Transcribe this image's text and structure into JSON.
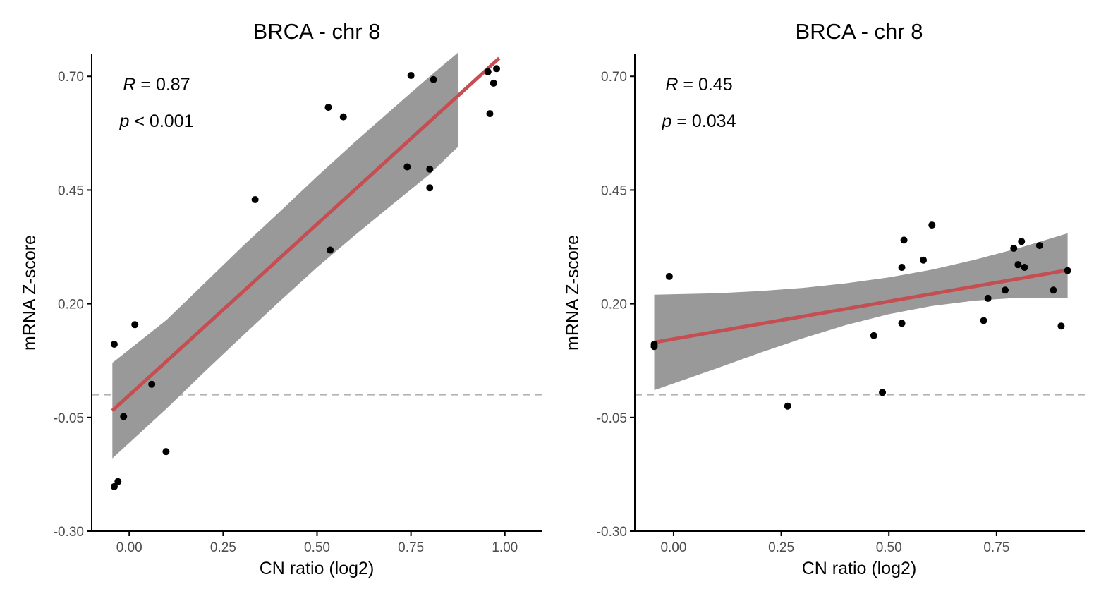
{
  "chart_data": [
    {
      "type": "scatter",
      "title": "BRCA - chr 8",
      "xlabel": "CN ratio (log2)",
      "ylabel": "mRNA Z-score",
      "xlim": [
        -0.1,
        1.1
      ],
      "ylim": [
        -0.3,
        0.75
      ],
      "xticks": [
        0.0,
        0.25,
        0.5,
        0.75,
        1.0
      ],
      "xtick_labels": [
        "0.00",
        "0.25",
        "0.50",
        "0.75",
        "1.00"
      ],
      "yticks": [
        -0.3,
        -0.05,
        0.2,
        0.45,
        0.7
      ],
      "ytick_labels": [
        "-0.30",
        "-0.05",
        "0.20",
        "0.45",
        "0.70"
      ],
      "reference_line_y": 0.0,
      "stats": {
        "r_label": "R",
        "r_text": " = 0.87",
        "p_label": "p",
        "p_text": " < 0.001"
      },
      "points": [
        {
          "x": -0.04,
          "y": 0.111
        },
        {
          "x": 0.015,
          "y": 0.154
        },
        {
          "x": 0.06,
          "y": 0.023
        },
        {
          "x": -0.015,
          "y": -0.048
        },
        {
          "x": 0.098,
          "y": -0.125
        },
        {
          "x": -0.04,
          "y": -0.202
        },
        {
          "x": -0.03,
          "y": -0.191
        },
        {
          "x": 0.335,
          "y": 0.429
        },
        {
          "x": 0.535,
          "y": 0.318
        },
        {
          "x": 0.53,
          "y": 0.632
        },
        {
          "x": 0.57,
          "y": 0.611
        },
        {
          "x": 0.74,
          "y": 0.501
        },
        {
          "x": 0.75,
          "y": 0.702
        },
        {
          "x": 0.8,
          "y": 0.496
        },
        {
          "x": 0.8,
          "y": 0.455
        },
        {
          "x": 0.81,
          "y": 0.693
        },
        {
          "x": 0.955,
          "y": 0.71
        },
        {
          "x": 0.96,
          "y": 0.618
        },
        {
          "x": 0.97,
          "y": 0.685
        },
        {
          "x": 0.978,
          "y": 0.717
        }
      ],
      "fit": {
        "x0": -0.045,
        "y0": -0.035,
        "x1": 0.985,
        "y1": 0.74
      },
      "ribbon_upper": [
        {
          "x": -0.045,
          "y": 0.07
        },
        {
          "x": 0.1,
          "y": 0.165
        },
        {
          "x": 0.2,
          "y": 0.245
        },
        {
          "x": 0.3,
          "y": 0.325
        },
        {
          "x": 0.4,
          "y": 0.402
        },
        {
          "x": 0.5,
          "y": 0.48
        },
        {
          "x": 0.6,
          "y": 0.555
        },
        {
          "x": 0.7,
          "y": 0.628
        },
        {
          "x": 0.8,
          "y": 0.7
        },
        {
          "x": 0.875,
          "y": 0.752
        }
      ],
      "ribbon_lower": [
        {
          "x": -0.045,
          "y": -0.14
        },
        {
          "x": 0.1,
          "y": -0.03
        },
        {
          "x": 0.2,
          "y": 0.05
        },
        {
          "x": 0.3,
          "y": 0.128
        },
        {
          "x": 0.4,
          "y": 0.205
        },
        {
          "x": 0.5,
          "y": 0.28
        },
        {
          "x": 0.6,
          "y": 0.35
        },
        {
          "x": 0.7,
          "y": 0.418
        },
        {
          "x": 0.8,
          "y": 0.485
        },
        {
          "x": 0.875,
          "y": 0.545
        }
      ],
      "colors": {
        "points": "#000000",
        "fit": "#c44e52",
        "ribbon": "#999999",
        "reference": "#b3b3b3"
      }
    },
    {
      "type": "scatter",
      "title": "BRCA - chr 8",
      "xlabel": "CN ratio (log2)",
      "ylabel": "mRNA Z-score",
      "xlim": [
        -0.09,
        0.955
      ],
      "ylim": [
        -0.3,
        0.75
      ],
      "xticks": [
        0.0,
        0.25,
        0.5,
        0.75
      ],
      "xtick_labels": [
        "0.00",
        "0.25",
        "0.50",
        "0.75"
      ],
      "yticks": [
        -0.3,
        -0.05,
        0.2,
        0.45,
        0.7
      ],
      "ytick_labels": [
        "-0.30",
        "-0.05",
        "0.20",
        "0.45",
        "0.70"
      ],
      "reference_line_y": 0.0,
      "stats": {
        "r_label": "R",
        "r_text": " = 0.45",
        "p_label": "p",
        "p_text": " = 0.034"
      },
      "points": [
        {
          "x": -0.045,
          "y": 0.111
        },
        {
          "x": -0.045,
          "y": 0.106
        },
        {
          "x": -0.01,
          "y": 0.26
        },
        {
          "x": 0.265,
          "y": -0.025
        },
        {
          "x": 0.465,
          "y": 0.13
        },
        {
          "x": 0.485,
          "y": 0.005
        },
        {
          "x": 0.53,
          "y": 0.157
        },
        {
          "x": 0.53,
          "y": 0.28
        },
        {
          "x": 0.535,
          "y": 0.34
        },
        {
          "x": 0.58,
          "y": 0.296
        },
        {
          "x": 0.6,
          "y": 0.373
        },
        {
          "x": 0.72,
          "y": 0.163
        },
        {
          "x": 0.73,
          "y": 0.212
        },
        {
          "x": 0.77,
          "y": 0.23
        },
        {
          "x": 0.79,
          "y": 0.322
        },
        {
          "x": 0.8,
          "y": 0.286
        },
        {
          "x": 0.808,
          "y": 0.337
        },
        {
          "x": 0.815,
          "y": 0.28
        },
        {
          "x": 0.85,
          "y": 0.328
        },
        {
          "x": 0.882,
          "y": 0.23
        },
        {
          "x": 0.9,
          "y": 0.151
        },
        {
          "x": 0.915,
          "y": 0.273
        }
      ],
      "fit": {
        "x0": -0.045,
        "y0": 0.115,
        "x1": 0.915,
        "y1": 0.274
      },
      "ribbon_upper": [
        {
          "x": -0.045,
          "y": 0.22
        },
        {
          "x": 0.1,
          "y": 0.223
        },
        {
          "x": 0.2,
          "y": 0.228
        },
        {
          "x": 0.3,
          "y": 0.235
        },
        {
          "x": 0.4,
          "y": 0.245
        },
        {
          "x": 0.5,
          "y": 0.258
        },
        {
          "x": 0.6,
          "y": 0.275
        },
        {
          "x": 0.7,
          "y": 0.297
        },
        {
          "x": 0.8,
          "y": 0.322
        },
        {
          "x": 0.915,
          "y": 0.355
        }
      ],
      "ribbon_lower": [
        {
          "x": -0.045,
          "y": 0.01
        },
        {
          "x": 0.1,
          "y": 0.058
        },
        {
          "x": 0.2,
          "y": 0.092
        },
        {
          "x": 0.3,
          "y": 0.124
        },
        {
          "x": 0.4,
          "y": 0.153
        },
        {
          "x": 0.5,
          "y": 0.177
        },
        {
          "x": 0.6,
          "y": 0.195
        },
        {
          "x": 0.7,
          "y": 0.207
        },
        {
          "x": 0.8,
          "y": 0.213
        },
        {
          "x": 0.915,
          "y": 0.213
        }
      ],
      "colors": {
        "points": "#000000",
        "fit": "#c44e52",
        "ribbon": "#999999",
        "reference": "#b3b3b3"
      }
    }
  ]
}
